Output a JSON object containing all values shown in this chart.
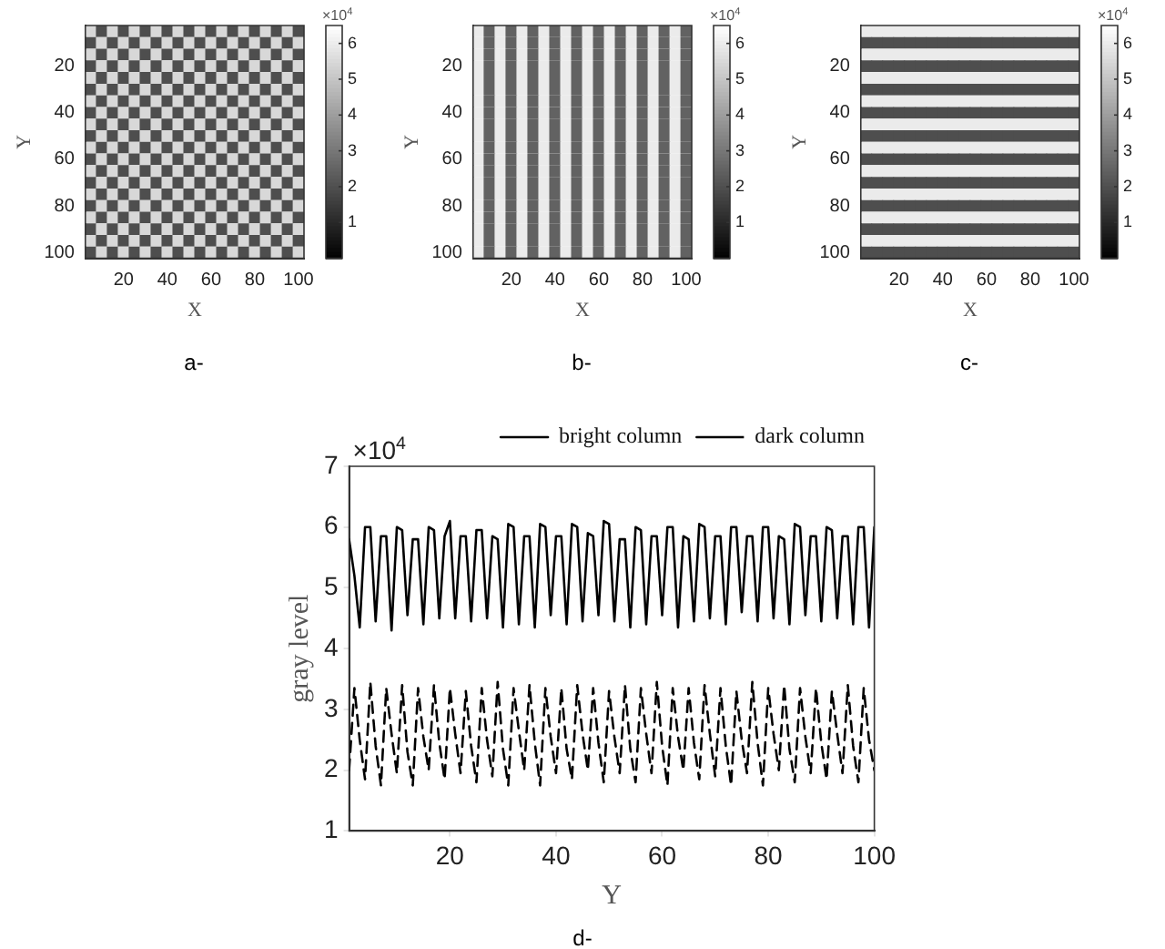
{
  "chart_data": [
    {
      "type": "heatmap",
      "xlabel": "X",
      "ylabel": "Y",
      "clabel": "×10$^{4}$",
      "annotations": [
        "a-"
      ],
      "categories": [
        null,
        null,
        null,
        "20",
        null,
        null,
        null,
        "40",
        null,
        null,
        null,
        "60",
        null,
        null,
        null,
        "80",
        null,
        null,
        null,
        "100"
      ],
      "y_categories": [
        null,
        null,
        null,
        "20",
        null,
        null,
        null,
        "40",
        null,
        null,
        null,
        "60",
        null,
        null,
        null,
        "80",
        null,
        null,
        null,
        "100"
      ],
      "clim": [
        0,
        6.5
      ],
      "cticks": [
        1,
        2,
        3,
        4,
        5,
        6
      ],
      "cells": [
        [
          5.5,
          2,
          5.5,
          2,
          5.5,
          2,
          5.5,
          2,
          5.5,
          2,
          5.5,
          2,
          5.5,
          2,
          5.5,
          2,
          5.5,
          2,
          5.5,
          2
        ],
        [
          2,
          5.5,
          2,
          5.5,
          2,
          5.5,
          2,
          5.5,
          2,
          5.5,
          2,
          5.5,
          2,
          5.5,
          2,
          5.5,
          2,
          5.5,
          2,
          5.5
        ],
        [
          5.5,
          2,
          5.5,
          2,
          5.5,
          2,
          5.5,
          2,
          5.5,
          2,
          5.5,
          2,
          5.5,
          2,
          5.5,
          2,
          5.5,
          2,
          5.5,
          2
        ],
        [
          2,
          5.5,
          2,
          5.5,
          2,
          5.5,
          2,
          5.5,
          2,
          5.5,
          2,
          5.5,
          2,
          5.5,
          2,
          5.5,
          2,
          5.5,
          2,
          5.5
        ],
        [
          5.5,
          2,
          5.5,
          2,
          5.5,
          2,
          5.5,
          2,
          5.5,
          2,
          5.5,
          2,
          5.5,
          2,
          5.5,
          2,
          5.5,
          2,
          5.5,
          2
        ],
        [
          2,
          5.5,
          2,
          5.5,
          2,
          5.5,
          2,
          5.5,
          2,
          5.5,
          2,
          5.5,
          2,
          5.5,
          2,
          5.5,
          2,
          5.5,
          2,
          5.5
        ],
        [
          5.5,
          2,
          5.5,
          2,
          5.5,
          2,
          5.5,
          2,
          5.5,
          2,
          5.5,
          2,
          5.5,
          2,
          5.5,
          2,
          5.5,
          2,
          5.5,
          2
        ],
        [
          2,
          5.5,
          2,
          5.5,
          2,
          5.5,
          2,
          5.5,
          2,
          5.5,
          2,
          5.5,
          2,
          5.5,
          2,
          5.5,
          2,
          5.5,
          2,
          5.5
        ],
        [
          5.5,
          2,
          5.5,
          2,
          5.5,
          2,
          5.5,
          2,
          5.5,
          2,
          5.5,
          2,
          5.5,
          2,
          5.5,
          2,
          5.5,
          2,
          5.5,
          2
        ],
        [
          2,
          5.5,
          2,
          5.5,
          2,
          5.5,
          2,
          5.5,
          2,
          5.5,
          2,
          5.5,
          2,
          5.5,
          2,
          5.5,
          2,
          5.5,
          2,
          5.5
        ],
        [
          5.5,
          2,
          5.5,
          2,
          5.5,
          2,
          5.5,
          2,
          5.5,
          2,
          5.5,
          2,
          5.5,
          2,
          5.5,
          2,
          5.5,
          2,
          5.5,
          2
        ],
        [
          2,
          5.5,
          2,
          5.5,
          2,
          5.5,
          2,
          5.5,
          2,
          5.5,
          2,
          5.5,
          2,
          5.5,
          2,
          5.5,
          2,
          5.5,
          2,
          5.5
        ],
        [
          5.5,
          2,
          5.5,
          2,
          5.5,
          2,
          5.5,
          2,
          5.5,
          2,
          5.5,
          2,
          5.5,
          2,
          5.5,
          2,
          5.5,
          2,
          5.5,
          2
        ],
        [
          2,
          5.5,
          2,
          5.5,
          2,
          5.5,
          2,
          5.5,
          2,
          5.5,
          2,
          5.5,
          2,
          5.5,
          2,
          5.5,
          2,
          5.5,
          2,
          5.5
        ],
        [
          5.5,
          2,
          5.5,
          2,
          5.5,
          2,
          5.5,
          2,
          5.5,
          2,
          5.5,
          2,
          5.5,
          2,
          5.5,
          2,
          5.5,
          2,
          5.5,
          2
        ],
        [
          2,
          5.5,
          2,
          5.5,
          2,
          5.5,
          2,
          5.5,
          2,
          5.5,
          2,
          5.5,
          2,
          5.5,
          2,
          5.5,
          2,
          5.5,
          2,
          5.5
        ],
        [
          5.5,
          2,
          5.5,
          2,
          5.5,
          2,
          5.5,
          2,
          5.5,
          2,
          5.5,
          2,
          5.5,
          2,
          5.5,
          2,
          5.5,
          2,
          5.5,
          2
        ],
        [
          2,
          5.5,
          2,
          5.5,
          2,
          5.5,
          2,
          5.5,
          2,
          5.5,
          2,
          5.5,
          2,
          5.5,
          2,
          5.5,
          2,
          5.5,
          2,
          5.5
        ],
        [
          5.5,
          2,
          5.5,
          2,
          5.5,
          2,
          5.5,
          2,
          5.5,
          2,
          5.5,
          2,
          5.5,
          2,
          5.5,
          2,
          5.5,
          2,
          5.5,
          2
        ],
        [
          2,
          5.5,
          2,
          5.5,
          2,
          5.5,
          2,
          5.5,
          2,
          5.5,
          2,
          5.5,
          2,
          5.5,
          2,
          5.5,
          2,
          5.5,
          2,
          5.5
        ]
      ]
    },
    {
      "type": "heatmap",
      "xlabel": "X",
      "ylabel": "Y",
      "clabel": "×10$^{4}$",
      "annotations": [
        "b-"
      ],
      "categories": [
        null,
        null,
        null,
        "20",
        null,
        null,
        null,
        "40",
        null,
        null,
        null,
        "60",
        null,
        null,
        null,
        "80",
        null,
        null,
        null,
        "100"
      ],
      "y_categories": [
        null,
        null,
        null,
        "20",
        null,
        null,
        null,
        "40",
        null,
        null,
        null,
        "60",
        null,
        null,
        null,
        "80",
        null,
        null,
        null,
        "100"
      ],
      "clim": [
        0,
        6.5
      ],
      "cticks": [
        1,
        2,
        3,
        4,
        5,
        6
      ],
      "cells": [
        [
          6,
          2.5,
          6,
          2.5,
          6,
          2.5,
          6,
          2.5,
          6,
          2.5,
          6,
          2.5,
          6,
          2.5,
          6,
          2.5,
          6,
          2.5,
          6,
          2.5
        ],
        [
          6,
          2.5,
          6,
          2.5,
          6,
          2.5,
          6,
          2.5,
          6,
          2.5,
          6,
          2.5,
          6,
          2.5,
          6,
          2.5,
          6,
          2.5,
          6,
          2.5
        ],
        [
          6,
          2.5,
          6,
          2.5,
          6,
          2.5,
          6,
          2.5,
          6,
          2.5,
          6,
          2.5,
          6,
          2.5,
          6,
          2.5,
          6,
          2.5,
          6,
          2.5
        ],
        [
          6,
          2.5,
          6,
          2.5,
          6,
          2.5,
          6,
          2.5,
          6,
          2.5,
          6,
          2.5,
          6,
          2.5,
          6,
          2.5,
          6,
          2.5,
          6,
          2.5
        ],
        [
          6,
          2.5,
          6,
          2.5,
          6,
          2.5,
          6,
          2.5,
          6,
          2.5,
          6,
          2.5,
          6,
          2.5,
          6,
          2.5,
          6,
          2.5,
          6,
          2.5
        ],
        [
          6,
          2.5,
          6,
          2.5,
          6,
          2.5,
          6,
          2.5,
          6,
          2.5,
          6,
          2.5,
          6,
          2.5,
          6,
          2.5,
          6,
          2.5,
          6,
          2.5
        ],
        [
          6,
          2.5,
          6,
          2.5,
          6,
          2.5,
          6,
          2.5,
          6,
          2.5,
          6,
          2.5,
          6,
          2.5,
          6,
          2.5,
          6,
          2.5,
          6,
          2.5
        ],
        [
          6,
          2.5,
          6,
          2.5,
          6,
          2.5,
          6,
          2.5,
          6,
          2.5,
          6,
          2.5,
          6,
          2.5,
          6,
          2.5,
          6,
          2.5,
          6,
          2.5
        ],
        [
          6,
          2.5,
          6,
          2.5,
          6,
          2.5,
          6,
          2.5,
          6,
          2.5,
          6,
          2.5,
          6,
          2.5,
          6,
          2.5,
          6,
          2.5,
          6,
          2.5
        ],
        [
          6,
          2.5,
          6,
          2.5,
          6,
          2.5,
          6,
          2.5,
          6,
          2.5,
          6,
          2.5,
          6,
          2.5,
          6,
          2.5,
          6,
          2.5,
          6,
          2.5
        ],
        [
          6,
          2.5,
          6,
          2.5,
          6,
          2.5,
          6,
          2.5,
          6,
          2.5,
          6,
          2.5,
          6,
          2.5,
          6,
          2.5,
          6,
          2.5,
          6,
          2.5
        ],
        [
          6,
          2.5,
          6,
          2.5,
          6,
          2.5,
          6,
          2.5,
          6,
          2.5,
          6,
          2.5,
          6,
          2.5,
          6,
          2.5,
          6,
          2.5,
          6,
          2.5
        ],
        [
          6,
          2.5,
          6,
          2.5,
          6,
          2.5,
          6,
          2.5,
          6,
          2.5,
          6,
          2.5,
          6,
          2.5,
          6,
          2.5,
          6,
          2.5,
          6,
          2.5
        ],
        [
          6,
          2.5,
          6,
          2.5,
          6,
          2.5,
          6,
          2.5,
          6,
          2.5,
          6,
          2.5,
          6,
          2.5,
          6,
          2.5,
          6,
          2.5,
          6,
          2.5
        ],
        [
          6,
          2.5,
          6,
          2.5,
          6,
          2.5,
          6,
          2.5,
          6,
          2.5,
          6,
          2.5,
          6,
          2.5,
          6,
          2.5,
          6,
          2.5,
          6,
          2.5
        ],
        [
          6,
          2.5,
          6,
          2.5,
          6,
          2.5,
          6,
          2.5,
          6,
          2.5,
          6,
          2.5,
          6,
          2.5,
          6,
          2.5,
          6,
          2.5,
          6,
          2.5
        ],
        [
          6,
          2.5,
          6,
          2.5,
          6,
          2.5,
          6,
          2.5,
          6,
          2.5,
          6,
          2.5,
          6,
          2.5,
          6,
          2.5,
          6,
          2.5,
          6,
          2.5
        ],
        [
          6,
          2.5,
          6,
          2.5,
          6,
          2.5,
          6,
          2.5,
          6,
          2.5,
          6,
          2.5,
          6,
          2.5,
          6,
          2.5,
          6,
          2.5,
          6,
          2.5
        ],
        [
          6,
          2.5,
          6,
          2.5,
          6,
          2.5,
          6,
          2.5,
          6,
          2.5,
          6,
          2.5,
          6,
          2.5,
          6,
          2.5,
          6,
          2.5,
          6,
          2.5
        ],
        [
          6,
          2.5,
          6,
          2.5,
          6,
          2.5,
          6,
          2.5,
          6,
          2.5,
          6,
          2.5,
          6,
          2.5,
          6,
          2.5,
          6,
          2.5,
          6,
          2.5
        ]
      ]
    },
    {
      "type": "heatmap",
      "xlabel": "X",
      "ylabel": "Y",
      "clabel": "×10$^{4}$",
      "annotations": [
        "c-"
      ],
      "categories": [
        null,
        null,
        null,
        "20",
        null,
        null,
        null,
        "40",
        null,
        null,
        null,
        "60",
        null,
        null,
        null,
        "80",
        null,
        null,
        null,
        "100"
      ],
      "y_categories": [
        null,
        null,
        null,
        "20",
        null,
        null,
        null,
        "40",
        null,
        null,
        null,
        "60",
        null,
        null,
        null,
        "80",
        null,
        null,
        null,
        "100"
      ],
      "clim": [
        0,
        6.5
      ],
      "cticks": [
        1,
        2,
        3,
        4,
        5,
        6
      ],
      "cells": [
        [
          6,
          6,
          6,
          6,
          6,
          6,
          6,
          6,
          6,
          6,
          6,
          6,
          6,
          6,
          6,
          6,
          6,
          6,
          6,
          6
        ],
        [
          2,
          2,
          2,
          2,
          2,
          2,
          2,
          2,
          2,
          2,
          2,
          2,
          2,
          2,
          2,
          2,
          2,
          2,
          2,
          2
        ],
        [
          6,
          6,
          6,
          6,
          6,
          6,
          6,
          6,
          6,
          6,
          6,
          6,
          6,
          6,
          6,
          6,
          6,
          6,
          6,
          6
        ],
        [
          2,
          2,
          2,
          2,
          2,
          2,
          2,
          2,
          2,
          2,
          2,
          2,
          2,
          2,
          2,
          2,
          2,
          2,
          2,
          2
        ],
        [
          6,
          6,
          6,
          6,
          6,
          6,
          6,
          6,
          6,
          6,
          6,
          6,
          6,
          6,
          6,
          6,
          6,
          6,
          6,
          6
        ],
        [
          2,
          2,
          2,
          2,
          2,
          2,
          2,
          2,
          2,
          2,
          2,
          2,
          2,
          2,
          2,
          2,
          2,
          2,
          2,
          2
        ],
        [
          6,
          6,
          6,
          6,
          6,
          6,
          6,
          6,
          6,
          6,
          6,
          6,
          6,
          6,
          6,
          6,
          6,
          6,
          6,
          6
        ],
        [
          2,
          2,
          2,
          2,
          2,
          2,
          2,
          2,
          2,
          2,
          2,
          2,
          2,
          2,
          2,
          2,
          2,
          2,
          2,
          2
        ],
        [
          6,
          6,
          6,
          6,
          6,
          6,
          6,
          6,
          6,
          6,
          6,
          6,
          6,
          6,
          6,
          6,
          6,
          6,
          6,
          6
        ],
        [
          2,
          2,
          2,
          2,
          2,
          2,
          2,
          2,
          2,
          2,
          2,
          2,
          2,
          2,
          2,
          2,
          2,
          2,
          2,
          2
        ],
        [
          6,
          6,
          6,
          6,
          6,
          6,
          6,
          6,
          6,
          6,
          6,
          6,
          6,
          6,
          6,
          6,
          6,
          6,
          6,
          6
        ],
        [
          2,
          2,
          2,
          2,
          2,
          2,
          2,
          2,
          2,
          2,
          2,
          2,
          2,
          2,
          2,
          2,
          2,
          2,
          2,
          2
        ],
        [
          6,
          6,
          6,
          6,
          6,
          6,
          6,
          6,
          6,
          6,
          6,
          6,
          6,
          6,
          6,
          6,
          6,
          6,
          6,
          6
        ],
        [
          2,
          2,
          2,
          2,
          2,
          2,
          2,
          2,
          2,
          2,
          2,
          2,
          2,
          2,
          2,
          2,
          2,
          2,
          2,
          2
        ],
        [
          6,
          6,
          6,
          6,
          6,
          6,
          6,
          6,
          6,
          6,
          6,
          6,
          6,
          6,
          6,
          6,
          6,
          6,
          6,
          6
        ],
        [
          2,
          2,
          2,
          2,
          2,
          2,
          2,
          2,
          2,
          2,
          2,
          2,
          2,
          2,
          2,
          2,
          2,
          2,
          2,
          2
        ],
        [
          6,
          6,
          6,
          6,
          6,
          6,
          6,
          6,
          6,
          6,
          6,
          6,
          6,
          6,
          6,
          6,
          6,
          6,
          6,
          6
        ],
        [
          2,
          2,
          2,
          2,
          2,
          2,
          2,
          2,
          2,
          2,
          2,
          2,
          2,
          2,
          2,
          2,
          2,
          2,
          2,
          2
        ],
        [
          6,
          6,
          6,
          6,
          6,
          6,
          6,
          6,
          6,
          6,
          6,
          6,
          6,
          6,
          6,
          6,
          6,
          6,
          6,
          6
        ],
        [
          2,
          2,
          2,
          2,
          2,
          2,
          2,
          2,
          2,
          2,
          2,
          2,
          2,
          2,
          2,
          2,
          2,
          2,
          2,
          2
        ]
      ]
    },
    {
      "type": "line",
      "xlabel": "Y",
      "ylabel": "gray level",
      "annotations": [
        "×10$^{4}$",
        "d-"
      ],
      "legend": "top right",
      "marker": "none",
      "x": [
        1,
        2,
        3,
        4,
        5,
        6,
        7,
        8,
        9,
        10,
        11,
        12,
        13,
        14,
        15,
        16,
        17,
        18,
        19,
        20,
        21,
        22,
        23,
        24,
        25,
        26,
        27,
        28,
        29,
        30,
        31,
        32,
        33,
        34,
        35,
        36,
        37,
        38,
        39,
        40,
        41,
        42,
        43,
        44,
        45,
        46,
        47,
        48,
        49,
        50,
        51,
        52,
        53,
        54,
        55,
        56,
        57,
        58,
        59,
        60,
        61,
        62,
        63,
        64,
        65,
        66,
        67,
        68,
        69,
        70,
        71,
        72,
        73,
        74,
        75,
        76,
        77,
        78,
        79,
        80,
        81,
        82,
        83,
        84,
        85,
        86,
        87,
        88,
        89,
        90,
        91,
        92,
        93,
        94,
        95,
        96,
        97,
        98,
        99,
        100
      ],
      "series": [
        {
          "name": "bright column",
          "color": "#000000",
          "line_style": "solid",
          "values": [
            5.8,
            5.2,
            4.35,
            6,
            6,
            4.45,
            5.85,
            5.85,
            4.3,
            6,
            5.95,
            4.55,
            5.8,
            5.8,
            4.4,
            6,
            5.95,
            4.5,
            5.85,
            6.1,
            4.5,
            5.85,
            5.85,
            4.45,
            5.95,
            5.95,
            4.5,
            5.85,
            5.8,
            4.35,
            6.05,
            6,
            4.4,
            5.85,
            5.85,
            4.35,
            6.05,
            6,
            4.55,
            5.85,
            5.85,
            4.4,
            6.05,
            6,
            4.45,
            5.9,
            5.85,
            4.55,
            6.1,
            6.05,
            4.45,
            5.8,
            5.8,
            4.35,
            6,
            5.95,
            4.4,
            5.85,
            5.85,
            4.55,
            6,
            6,
            4.35,
            5.85,
            5.8,
            4.45,
            6.05,
            6,
            4.5,
            5.85,
            5.85,
            4.4,
            6,
            6,
            4.6,
            5.85,
            5.85,
            4.45,
            6,
            6,
            4.5,
            5.85,
            5.8,
            4.4,
            6.05,
            6,
            4.55,
            5.85,
            5.85,
            4.45,
            6,
            5.95,
            4.5,
            5.85,
            5.85,
            4.4,
            6,
            6,
            4.35,
            6
          ]
        },
        {
          "name": "dark column",
          "color": "#000000",
          "line_style": "dashed",
          "values": [
            2,
            3.35,
            2.5,
            1.85,
            3.45,
            2.4,
            1.75,
            3.35,
            2.6,
            1.95,
            3.4,
            2.3,
            1.75,
            3.35,
            2.55,
            2,
            3.4,
            2.45,
            1.85,
            3.35,
            2.6,
            1.95,
            3.3,
            2.4,
            1.8,
            3.35,
            2.5,
            1.9,
            3.45,
            2.35,
            1.75,
            3.35,
            2.65,
            2,
            3.4,
            2.45,
            1.75,
            3.35,
            2.55,
            1.95,
            3.35,
            2.35,
            1.85,
            3.4,
            2.6,
            2,
            3.35,
            2.45,
            1.8,
            3.3,
            2.55,
            1.95,
            3.4,
            2.35,
            1.8,
            3.35,
            2.6,
            1.95,
            3.45,
            2.4,
            1.75,
            3.35,
            2.55,
            2,
            3.35,
            2.45,
            1.85,
            3.4,
            2.6,
            1.9,
            3.35,
            2.4,
            1.75,
            3.3,
            2.5,
            1.95,
            3.45,
            2.45,
            1.75,
            3.35,
            2.6,
            2,
            3.4,
            2.35,
            1.8,
            3.35,
            2.55,
            1.95,
            3.35,
            2.45,
            1.85,
            3.3,
            2.6,
            1.95,
            3.4,
            2.4,
            1.8,
            3.35,
            2.5,
            2
          ]
        }
      ],
      "xlim": [
        1,
        100
      ],
      "ylim": [
        1,
        7
      ],
      "xticks": [
        20,
        40,
        60,
        80,
        100
      ],
      "yticks": [
        1,
        2,
        3,
        4,
        5,
        6,
        7
      ]
    }
  ]
}
